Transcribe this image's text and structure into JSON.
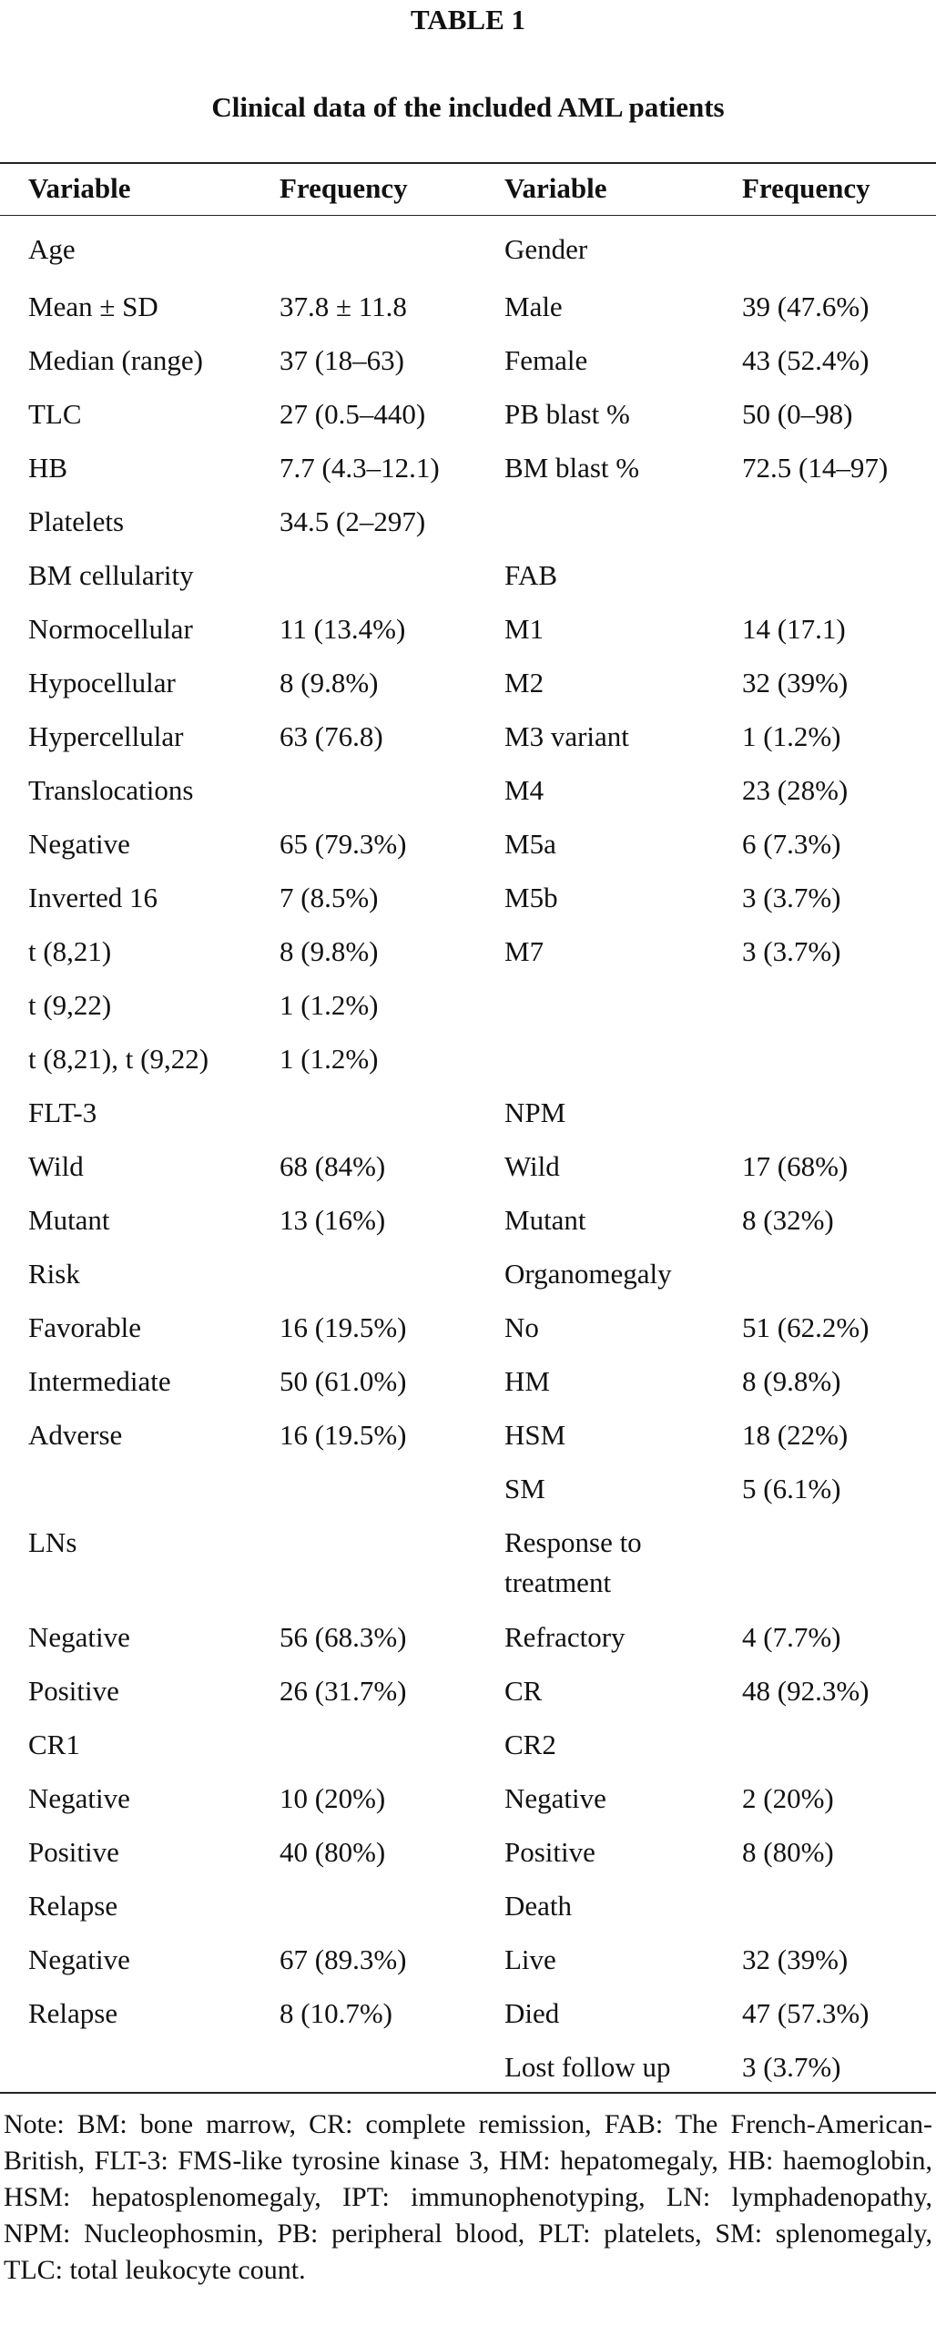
{
  "table": {
    "label": "TABLE 1",
    "caption": "Clinical data of the included AML patients",
    "headers": [
      "Variable",
      "Frequency",
      "Variable",
      "Frequency"
    ],
    "rows": [
      [
        "Age",
        "",
        "Gender",
        ""
      ],
      [
        "Mean ± SD",
        "37.8 ± 11.8",
        "Male",
        "39 (47.6%)"
      ],
      [
        "Median (range)",
        "37 (18–63)",
        "Female",
        "43 (52.4%)"
      ],
      [
        "TLC",
        "27 (0.5–440)",
        "PB blast %",
        "50 (0–98)"
      ],
      [
        "HB",
        "7.7 (4.3–12.1)",
        "BM blast %",
        "72.5 (14–97)"
      ],
      [
        "Platelets",
        "34.5 (2–297)",
        "",
        ""
      ],
      [
        "BM cellularity",
        "",
        "FAB",
        ""
      ],
      [
        "Normocellular",
        "11 (13.4%)",
        "M1",
        "14 (17.1)"
      ],
      [
        "Hypocellular",
        "8 (9.8%)",
        "M2",
        "32 (39%)"
      ],
      [
        "Hypercellular",
        "63 (76.8)",
        "M3 variant",
        "1 (1.2%)"
      ],
      [
        "Translocations",
        "",
        "M4",
        "23 (28%)"
      ],
      [
        "Negative",
        "65 (79.3%)",
        "M5a",
        "6 (7.3%)"
      ],
      [
        "Inverted 16",
        "7 (8.5%)",
        "M5b",
        "3 (3.7%)"
      ],
      [
        "t (8,21)",
        "8 (9.8%)",
        "M7",
        "3 (3.7%)"
      ],
      [
        "t (9,22)",
        "1 (1.2%)",
        "",
        ""
      ],
      [
        "t (8,21), t (9,22)",
        "1 (1.2%)",
        "",
        ""
      ],
      [
        "FLT-3",
        "",
        "NPM",
        ""
      ],
      [
        "Wild",
        "68 (84%)",
        "Wild",
        "17 (68%)"
      ],
      [
        "Mutant",
        "13 (16%)",
        "Mutant",
        "8 (32%)"
      ],
      [
        "Risk",
        "",
        "Organomegaly",
        ""
      ],
      [
        "Favorable",
        "16 (19.5%)",
        "No",
        "51 (62.2%)"
      ],
      [
        "Intermediate",
        "50 (61.0%)",
        "HM",
        "8 (9.8%)"
      ],
      [
        "Adverse",
        "16 (19.5%)",
        "HSM",
        "18 (22%)"
      ],
      [
        "",
        "",
        "SM",
        "5 (6.1%)"
      ],
      [
        "LNs",
        "",
        "Response to treatment",
        ""
      ],
      [
        "Negative",
        "56 (68.3%)",
        "Refractory",
        "4 (7.7%)"
      ],
      [
        "Positive",
        "26 (31.7%)",
        "CR",
        "48 (92.3%)"
      ],
      [
        "CR1",
        "",
        "CR2",
        ""
      ],
      [
        "Negative",
        "10 (20%)",
        "Negative",
        "2 (20%)"
      ],
      [
        "Positive",
        "40 (80%)",
        "Positive",
        "8 (80%)"
      ],
      [
        "Relapse",
        "",
        "Death",
        ""
      ],
      [
        "Negative",
        "67 (89.3%)",
        "Live",
        "32 (39%)"
      ],
      [
        "Relapse",
        "8 (10.7%)",
        "Died",
        "47 (57.3%)"
      ],
      [
        "",
        "",
        "Lost follow up",
        "3 (3.7%)"
      ]
    ],
    "note": "Note: BM: bone marrow, CR: complete remission, FAB: The French-American-British, FLT-3: FMS-like tyrosine kinase 3, HM: hepatomegaly, HB: haemoglobin, HSM: hepatosplenomegaly, IPT: immunophenotyping, LN: lymphadenopathy, NPM: Nucleophosmin, PB: peripheral blood, PLT: platelets, SM: splenomegaly, TLC: total leukocyte count."
  }
}
